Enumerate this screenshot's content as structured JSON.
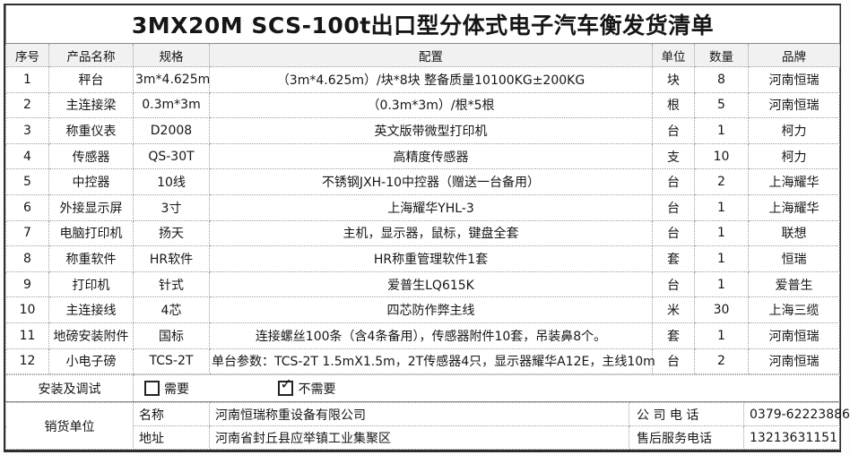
{
  "title": "3MX20M SCS-100t出口型分体式电子汽车衡发货清单",
  "table": {
    "headers": [
      "序号",
      "产品名称",
      "规格",
      "配置",
      "单位",
      "数量",
      "品牌"
    ],
    "rows": [
      [
        "1",
        "秤台",
        "3m*4.625m",
        "（3m*4.625m）/块*8块  整备质量10100KG±200KG",
        "块",
        "8",
        "河南恒瑞"
      ],
      [
        "2",
        "主连接梁",
        "0.3m*3m",
        "（0.3m*3m）/根*5根",
        "根",
        "5",
        "河南恒瑞"
      ],
      [
        "3",
        "称重仪表",
        "D2008",
        "英文版带微型打印机",
        "台",
        "1",
        "柯力"
      ],
      [
        "4",
        "传感器",
        "QS-30T",
        "高精度传感器",
        "支",
        "10",
        "柯力"
      ],
      [
        "5",
        "中控器",
        "10线",
        "不锈钢JXH-10中控器（赠送一台备用）",
        "台",
        "2",
        "上海耀华"
      ],
      [
        "6",
        "外接显示屏",
        "3寸",
        "上海耀华YHL-3",
        "台",
        "1",
        "上海耀华"
      ],
      [
        "7",
        "电脑打印机",
        "扬天",
        "主机，显示器，鼠标，键盘全套",
        "台",
        "1",
        "联想"
      ],
      [
        "8",
        "称重软件",
        "HR软件",
        "HR称重管理软件1套",
        "套",
        "1",
        "恒瑞"
      ],
      [
        "9",
        "打印机",
        "针式",
        "爱普生LQ615K",
        "台",
        "1",
        "爱普生"
      ],
      [
        "10",
        "主连接线",
        "4芯",
        "四芯防作弊主线",
        "米",
        "30",
        "上海三缆"
      ],
      [
        "11",
        "地磅安装附件",
        "国标",
        "连接螺丝100条（含4条备用），传感器附件10套，吊装鼻8个。",
        "套",
        "1",
        "河南恒瑞"
      ],
      [
        "12",
        "小电子磅",
        "TCS-2T",
        "单台参数：TCS-2T  1.5mX1.5m，2T传感器4只，显示器耀华A12E，主线10m",
        "台",
        "2",
        "河南恒瑞"
      ]
    ]
  },
  "install": {
    "label": "安装及调试",
    "option_need": "需要",
    "option_no_need": "不需要",
    "checked_option": "不需要",
    "checkmark": "✓"
  },
  "seller": {
    "label": "销货单位",
    "name_label": "名称",
    "name_value": "河南恒瑞称重设备有限公司",
    "address_label": "地址",
    "address_value": "河南省封丘县应举镇工业集聚区",
    "company_phone_label": "公 司 电 话",
    "company_phone_value": "0379-62223886",
    "service_phone_label": "售后服务电话",
    "service_phone_value": "13213631151"
  }
}
